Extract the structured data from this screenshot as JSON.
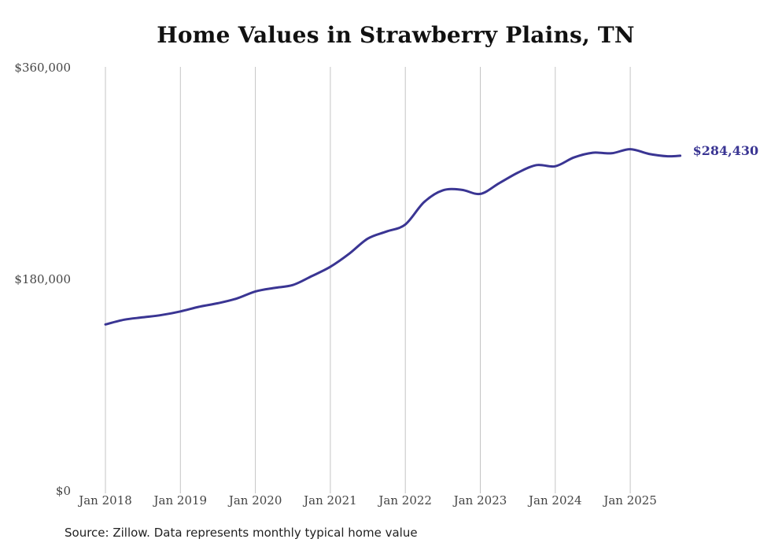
{
  "chart_data": {
    "type": "line",
    "title": "Home Values in Strawberry Plains, TN",
    "source_note": "Source: Zillow. Data represents monthly typical home value",
    "xlabel": "",
    "ylabel": "",
    "ylim": [
      0,
      360000
    ],
    "y_ticks": [
      {
        "value": 0,
        "label": "$0"
      },
      {
        "value": 180000,
        "label": "$180,000"
      },
      {
        "value": 360000,
        "label": "$360,000"
      }
    ],
    "x_ticks": [
      {
        "value": "2018-01",
        "label": "Jan 2018"
      },
      {
        "value": "2019-01",
        "label": "Jan 2019"
      },
      {
        "value": "2020-01",
        "label": "Jan 2020"
      },
      {
        "value": "2021-01",
        "label": "Jan 2021"
      },
      {
        "value": "2022-01",
        "label": "Jan 2022"
      },
      {
        "value": "2023-01",
        "label": "Jan 2023"
      },
      {
        "value": "2024-01",
        "label": "Jan 2024"
      },
      {
        "value": "2025-01",
        "label": "Jan 2025"
      }
    ],
    "grid": "vertical",
    "line_color": "#3a3593",
    "end_label": "$284,430",
    "series": [
      {
        "points": [
          {
            "x": "2018-01",
            "y": 141000
          },
          {
            "x": "2018-04",
            "y": 145000
          },
          {
            "x": "2018-07",
            "y": 147000
          },
          {
            "x": "2018-10",
            "y": 149000
          },
          {
            "x": "2019-01",
            "y": 152000
          },
          {
            "x": "2019-04",
            "y": 156000
          },
          {
            "x": "2019-07",
            "y": 159000
          },
          {
            "x": "2019-10",
            "y": 163000
          },
          {
            "x": "2020-01",
            "y": 169000
          },
          {
            "x": "2020-04",
            "y": 172000
          },
          {
            "x": "2020-07",
            "y": 174500
          },
          {
            "x": "2020-10",
            "y": 182000
          },
          {
            "x": "2021-01",
            "y": 190000
          },
          {
            "x": "2021-04",
            "y": 201000
          },
          {
            "x": "2021-07",
            "y": 214000
          },
          {
            "x": "2021-10",
            "y": 220000
          },
          {
            "x": "2022-01",
            "y": 226000
          },
          {
            "x": "2022-04",
            "y": 245000
          },
          {
            "x": "2022-07",
            "y": 255000
          },
          {
            "x": "2022-10",
            "y": 255500
          },
          {
            "x": "2023-01",
            "y": 252000
          },
          {
            "x": "2023-04",
            "y": 261000
          },
          {
            "x": "2023-07",
            "y": 270000
          },
          {
            "x": "2023-10",
            "y": 276500
          },
          {
            "x": "2024-01",
            "y": 275500
          },
          {
            "x": "2024-04",
            "y": 283000
          },
          {
            "x": "2024-07",
            "y": 287000
          },
          {
            "x": "2024-10",
            "y": 286500
          },
          {
            "x": "2025-01",
            "y": 290000
          },
          {
            "x": "2025-04",
            "y": 286000
          },
          {
            "x": "2025-07",
            "y": 284000
          },
          {
            "x": "2025-09",
            "y": 284430
          }
        ]
      }
    ]
  }
}
